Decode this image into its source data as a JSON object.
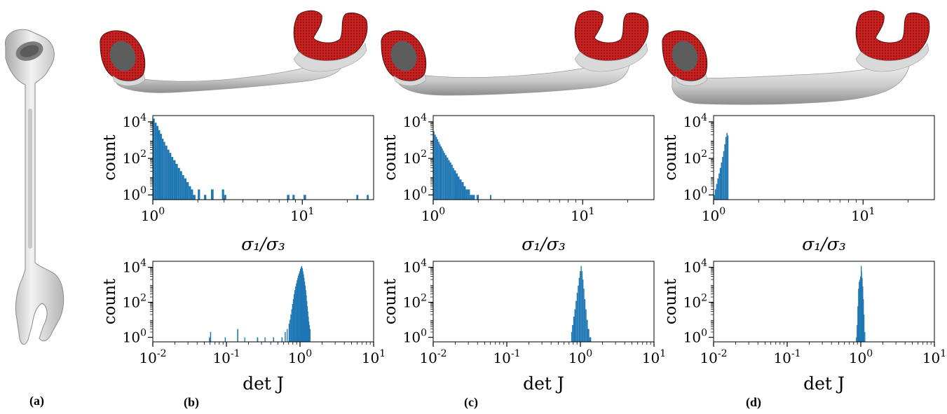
{
  "subfigure_labels": [
    "(a)",
    "(b)",
    "(c)",
    "(d)"
  ],
  "colors": {
    "bar": "#1f77b4",
    "handle": "#c8211f",
    "mesh": "#d9d9d9",
    "mesh_edge": "#9a9a9a"
  },
  "axis_text": {
    "count": "count",
    "sigma_x": "σ₁/σ₃",
    "detj_x": "det J"
  },
  "chart_data": [
    {
      "type": "bar",
      "panel": "b",
      "metric": "sigma",
      "xscale": "log",
      "yscale": "log",
      "xlim": [
        1,
        30
      ],
      "ylim": [
        1,
        10000
      ],
      "xticks": [
        "10^0",
        "10^1"
      ],
      "yticks": [
        "10^0",
        "10^2",
        "10^4"
      ],
      "xlabel": "σ₁/σ₃",
      "ylabel": "count",
      "bins": [
        [
          1.0,
          1.03,
          15000
        ],
        [
          1.03,
          1.06,
          9000
        ],
        [
          1.06,
          1.09,
          6000
        ],
        [
          1.09,
          1.12,
          3500
        ],
        [
          1.12,
          1.15,
          2200
        ],
        [
          1.15,
          1.18,
          1200
        ],
        [
          1.18,
          1.21,
          800
        ],
        [
          1.21,
          1.25,
          500
        ],
        [
          1.25,
          1.29,
          300
        ],
        [
          1.29,
          1.33,
          200
        ],
        [
          1.33,
          1.37,
          120
        ],
        [
          1.37,
          1.42,
          80
        ],
        [
          1.42,
          1.47,
          50
        ],
        [
          1.47,
          1.52,
          30
        ],
        [
          1.52,
          1.57,
          20
        ],
        [
          1.57,
          1.62,
          12
        ],
        [
          1.62,
          1.68,
          8
        ],
        [
          1.68,
          1.74,
          5
        ],
        [
          1.74,
          1.8,
          3
        ],
        [
          1.8,
          1.86,
          2
        ],
        [
          1.86,
          1.93,
          1
        ],
        [
          2.0,
          2.07,
          2
        ],
        [
          2.2,
          2.28,
          1
        ],
        [
          2.45,
          2.55,
          2
        ],
        [
          2.9,
          3.0,
          2
        ],
        [
          3.0,
          3.1,
          1
        ],
        [
          7.9,
          8.2,
          1
        ],
        [
          8.6,
          8.9,
          1
        ],
        [
          10.2,
          10.6,
          1
        ],
        [
          23.0,
          23.7,
          1
        ],
        [
          27.0,
          27.8,
          1
        ]
      ]
    },
    {
      "type": "bar",
      "panel": "b",
      "metric": "detj",
      "xscale": "log",
      "yscale": "log",
      "xlim": [
        0.01,
        10
      ],
      "ylim": [
        1,
        10000
      ],
      "xticks": [
        "10^-2",
        "10^-1",
        "10^0",
        "10^1"
      ],
      "yticks": [
        "10^0",
        "10^2",
        "10^4"
      ],
      "xlabel": "det J",
      "ylabel": "count",
      "bins": [
        [
          0.058,
          0.06,
          1
        ],
        [
          0.06,
          0.062,
          2
        ],
        [
          0.095,
          0.098,
          1
        ],
        [
          0.14,
          0.145,
          3
        ],
        [
          0.175,
          0.18,
          1
        ],
        [
          0.26,
          0.27,
          1
        ],
        [
          0.33,
          0.34,
          1
        ],
        [
          0.43,
          0.445,
          1
        ],
        [
          0.56,
          0.58,
          1
        ],
        [
          0.62,
          0.64,
          2
        ],
        [
          0.66,
          0.68,
          3
        ],
        [
          0.7,
          0.72,
          6
        ],
        [
          0.72,
          0.74,
          10
        ],
        [
          0.74,
          0.76,
          20
        ],
        [
          0.76,
          0.78,
          40
        ],
        [
          0.78,
          0.8,
          80
        ],
        [
          0.8,
          0.82,
          150
        ],
        [
          0.82,
          0.84,
          300
        ],
        [
          0.84,
          0.86,
          500
        ],
        [
          0.86,
          0.88,
          800
        ],
        [
          0.88,
          0.9,
          1200
        ],
        [
          0.9,
          0.92,
          1800
        ],
        [
          0.92,
          0.94,
          2500
        ],
        [
          0.94,
          0.96,
          3500
        ],
        [
          0.96,
          0.98,
          4500
        ],
        [
          0.98,
          1.0,
          6000
        ],
        [
          1.0,
          1.02,
          8000
        ],
        [
          1.02,
          1.04,
          10000
        ],
        [
          1.04,
          1.06,
          12000
        ],
        [
          1.06,
          1.08,
          9000
        ],
        [
          1.08,
          1.1,
          6000
        ],
        [
          1.1,
          1.12,
          4000
        ],
        [
          1.12,
          1.14,
          2500
        ],
        [
          1.14,
          1.16,
          1500
        ],
        [
          1.16,
          1.18,
          900
        ],
        [
          1.18,
          1.2,
          500
        ],
        [
          1.2,
          1.22,
          250
        ],
        [
          1.22,
          1.24,
          120
        ],
        [
          1.24,
          1.26,
          60
        ],
        [
          1.26,
          1.28,
          30
        ],
        [
          1.28,
          1.3,
          15
        ],
        [
          1.3,
          1.32,
          8
        ],
        [
          1.32,
          1.35,
          5
        ],
        [
          1.35,
          1.38,
          3
        ]
      ]
    },
    {
      "type": "bar",
      "panel": "c",
      "metric": "sigma",
      "xscale": "log",
      "yscale": "log",
      "xlim": [
        1,
        30
      ],
      "ylim": [
        1,
        10000
      ],
      "xticks": [
        "10^0",
        "10^1"
      ],
      "yticks": [
        "10^0",
        "10^2",
        "10^4"
      ],
      "xlabel": "σ₁/σ₃",
      "ylabel": "count",
      "bins": [
        [
          1.0,
          1.02,
          3000
        ],
        [
          1.02,
          1.04,
          2000
        ],
        [
          1.04,
          1.06,
          1500
        ],
        [
          1.06,
          1.08,
          1100
        ],
        [
          1.08,
          1.1,
          800
        ],
        [
          1.1,
          1.12,
          600
        ],
        [
          1.12,
          1.14,
          450
        ],
        [
          1.14,
          1.16,
          350
        ],
        [
          1.16,
          1.18,
          260
        ],
        [
          1.18,
          1.2,
          200
        ],
        [
          1.2,
          1.23,
          150
        ],
        [
          1.23,
          1.26,
          110
        ],
        [
          1.26,
          1.29,
          80
        ],
        [
          1.29,
          1.32,
          60
        ],
        [
          1.32,
          1.35,
          45
        ],
        [
          1.35,
          1.38,
          30
        ],
        [
          1.38,
          1.42,
          22
        ],
        [
          1.42,
          1.46,
          15
        ],
        [
          1.46,
          1.5,
          10
        ],
        [
          1.5,
          1.55,
          7
        ],
        [
          1.55,
          1.6,
          5
        ],
        [
          1.6,
          1.65,
          3
        ],
        [
          1.65,
          1.7,
          2
        ],
        [
          1.7,
          1.76,
          2
        ],
        [
          1.76,
          1.82,
          1
        ],
        [
          1.82,
          1.9,
          1
        ],
        [
          1.95,
          2.02,
          1
        ],
        [
          2.4,
          2.45,
          1
        ]
      ]
    },
    {
      "type": "bar",
      "panel": "c",
      "metric": "detj",
      "xscale": "log",
      "yscale": "log",
      "xlim": [
        0.01,
        10
      ],
      "ylim": [
        1,
        10000
      ],
      "xticks": [
        "10^-2",
        "10^-1",
        "10^0",
        "10^1"
      ],
      "yticks": [
        "10^0",
        "10^2",
        "10^4"
      ],
      "xlabel": "det J",
      "ylabel": "count",
      "bins": [
        [
          0.75,
          0.77,
          2
        ],
        [
          0.77,
          0.8,
          5
        ],
        [
          0.8,
          0.83,
          15
        ],
        [
          0.83,
          0.86,
          40
        ],
        [
          0.86,
          0.89,
          120
        ],
        [
          0.89,
          0.92,
          350
        ],
        [
          0.92,
          0.95,
          900
        ],
        [
          0.95,
          0.98,
          2500
        ],
        [
          0.98,
          1.01,
          6000
        ],
        [
          1.01,
          1.04,
          12000
        ],
        [
          1.04,
          1.07,
          6000
        ],
        [
          1.07,
          1.1,
          2000
        ],
        [
          1.1,
          1.13,
          600
        ],
        [
          1.13,
          1.17,
          150
        ],
        [
          1.17,
          1.21,
          40
        ],
        [
          1.21,
          1.26,
          10
        ],
        [
          1.26,
          1.32,
          3
        ],
        [
          1.32,
          1.4,
          1
        ]
      ]
    },
    {
      "type": "bar",
      "panel": "d",
      "metric": "sigma",
      "xscale": "log",
      "yscale": "log",
      "xlim": [
        1,
        30
      ],
      "ylim": [
        1,
        10000
      ],
      "xticks": [
        "10^0",
        "10^1"
      ],
      "yticks": [
        "10^0",
        "10^2",
        "10^4"
      ],
      "xlabel": "σ₁/σ₃",
      "ylabel": "count",
      "bins": [
        [
          1.0,
          1.02,
          1
        ],
        [
          1.02,
          1.04,
          2
        ],
        [
          1.04,
          1.06,
          4
        ],
        [
          1.06,
          1.08,
          8
        ],
        [
          1.08,
          1.1,
          15
        ],
        [
          1.1,
          1.12,
          30
        ],
        [
          1.12,
          1.14,
          60
        ],
        [
          1.14,
          1.16,
          120
        ],
        [
          1.16,
          1.18,
          250
        ],
        [
          1.18,
          1.2,
          600
        ],
        [
          1.2,
          1.22,
          1500
        ],
        [
          1.22,
          1.24,
          2500
        ],
        [
          1.24,
          1.255,
          1800
        ]
      ]
    },
    {
      "type": "bar",
      "panel": "d",
      "metric": "detj",
      "xscale": "log",
      "yscale": "log",
      "xlim": [
        0.01,
        10
      ],
      "ylim": [
        1,
        10000
      ],
      "xticks": [
        "10^-2",
        "10^-1",
        "10^0",
        "10^1"
      ],
      "yticks": [
        "10^0",
        "10^2",
        "10^4"
      ],
      "xlabel": "det J",
      "ylabel": "count",
      "bins": [
        [
          0.86,
          0.88,
          1
        ],
        [
          0.88,
          0.9,
          5
        ],
        [
          0.9,
          0.92,
          60
        ],
        [
          0.92,
          0.94,
          600
        ],
        [
          0.94,
          0.96,
          1500
        ],
        [
          0.96,
          0.98,
          2000
        ],
        [
          0.98,
          1.0,
          3000
        ],
        [
          1.0,
          1.01,
          12000
        ],
        [
          1.01,
          1.03,
          6000
        ],
        [
          1.03,
          1.05,
          2500
        ],
        [
          1.05,
          1.07,
          800
        ],
        [
          1.07,
          1.09,
          150
        ],
        [
          1.09,
          1.12,
          20
        ],
        [
          1.12,
          1.15,
          2
        ]
      ]
    }
  ]
}
